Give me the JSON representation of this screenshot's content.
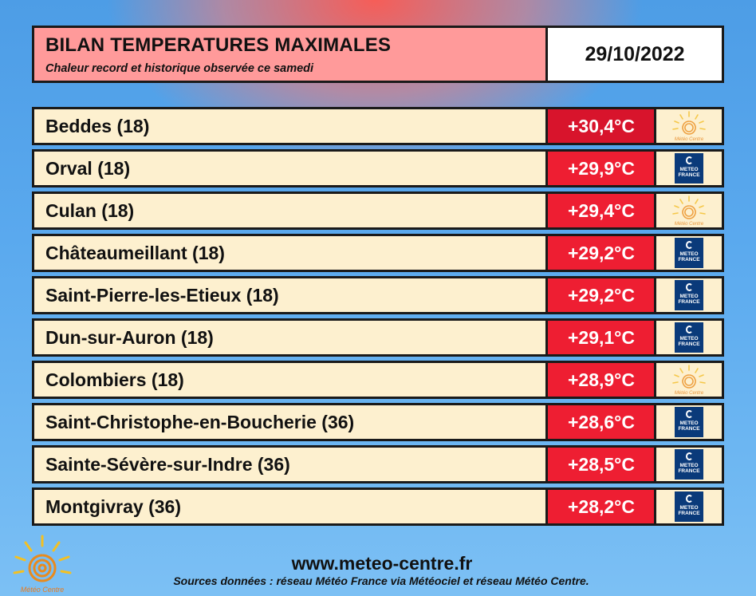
{
  "header": {
    "title": "BILAN TEMPERATURES MAXIMALES",
    "subtitle": "Chaleur record et historique observée ce samedi",
    "date": "29/10/2022"
  },
  "rows": [
    {
      "name": "Beddes (18)",
      "temp": "+30,4°C",
      "source": "meteo-centre"
    },
    {
      "name": "Orval (18)",
      "temp": "+29,9°C",
      "source": "meteo-france"
    },
    {
      "name": "Culan (18)",
      "temp": "+29,4°C",
      "source": "meteo-centre"
    },
    {
      "name": "Châteaumeillant (18)",
      "temp": "+29,2°C",
      "source": "meteo-france"
    },
    {
      "name": "Saint-Pierre-les-Etieux (18)",
      "temp": "+29,2°C",
      "source": "meteo-france"
    },
    {
      "name": "Dun-sur-Auron (18)",
      "temp": "+29,1°C",
      "source": "meteo-france"
    },
    {
      "name": "Colombiers (18)",
      "temp": "+28,9°C",
      "source": "meteo-centre"
    },
    {
      "name": "Saint-Christophe-en-Boucherie (36)",
      "temp": "+28,6°C",
      "source": "meteo-france"
    },
    {
      "name": "Sainte-Sévère-sur-Indre (36)",
      "temp": "+28,5°C",
      "source": "meteo-france"
    },
    {
      "name": "Montgivray (36)",
      "temp": "+28,2°C",
      "source": "meteo-france"
    }
  ],
  "logos": {
    "meteo_centre_text": "Météo Centre",
    "meteo_france_line1": "METEO",
    "meteo_france_line2": "FRANCE"
  },
  "footer": {
    "url": "www.meteo-centre.fr",
    "sources": "Sources données : réseau Météo France via Météociel et réseau Météo Centre."
  },
  "colors": {
    "title_bg": "#ff9a9a",
    "row_bg": "#fdf0cf",
    "temp_bg": "#ee1e32",
    "meteo_france_blue": "#0a3a7a"
  }
}
